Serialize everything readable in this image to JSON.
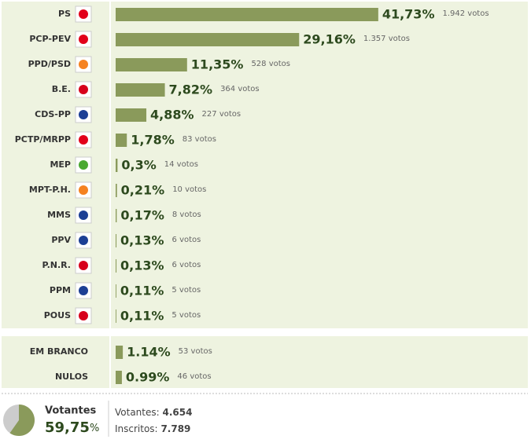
{
  "chart_data": [
    {
      "type": "bar",
      "orientation": "horizontal",
      "color": "#8a9a5b",
      "xlim": [
        0,
        50
      ],
      "categories": [
        "PS",
        "PCP-PEV",
        "PPD/PSD",
        "B.E.",
        "CDS-PP",
        "PCTP/MRPP",
        "MEP",
        "MPT-P.H.",
        "MMS",
        "PPV",
        "P.N.R.",
        "PPM",
        "POUS"
      ],
      "values": [
        41.73,
        29.16,
        11.35,
        7.82,
        4.88,
        1.78,
        0.3,
        0.21,
        0.17,
        0.13,
        0.13,
        0.11,
        0.11
      ],
      "value_labels": [
        "41,73%",
        "29,16%",
        "11,35%",
        "7,82%",
        "4,88%",
        "1,78%",
        "0,3%",
        "0,21%",
        "0,17%",
        "0,13%",
        "0,13%",
        "0,11%",
        "0,11%"
      ],
      "votes": [
        {
          "value": 1942,
          "label": "1.942 votos"
        },
        {
          "value": 1357,
          "label": "1.357 votos"
        },
        {
          "value": 528,
          "label": "528 votos"
        },
        {
          "value": 364,
          "label": "364 votos"
        },
        {
          "value": 227,
          "label": "227 votos"
        },
        {
          "value": 83,
          "label": "83 votos"
        },
        {
          "value": 14,
          "label": "14 votos"
        },
        {
          "value": 10,
          "label": "10 votos"
        },
        {
          "value": 8,
          "label": "8 votos"
        },
        {
          "value": 6,
          "label": "6 votos"
        },
        {
          "value": 6,
          "label": "6 votos"
        },
        {
          "value": 5,
          "label": "5 votos"
        },
        {
          "value": 5,
          "label": "5 votos"
        }
      ]
    },
    {
      "type": "bar",
      "orientation": "horizontal",
      "color": "#8a9a5b",
      "xlim": [
        0,
        50
      ],
      "categories": [
        "EM BRANCO",
        "NULOS"
      ],
      "values": [
        1.14,
        0.99
      ],
      "value_labels": [
        "1.14%",
        "0.99%"
      ],
      "votes": [
        {
          "value": 53,
          "label": "53 votos"
        },
        {
          "value": 46,
          "label": "46 votos"
        }
      ]
    }
  ],
  "summary": {
    "title": "Votantes",
    "turnout": {
      "value": 59.75,
      "label": "59,75",
      "unit": "%"
    },
    "voters": {
      "label": "Votantes:",
      "value": 4654,
      "value_label": "4.654"
    },
    "registered": {
      "label": "Inscritos:",
      "value": 7789,
      "value_label": "7.789"
    }
  }
}
